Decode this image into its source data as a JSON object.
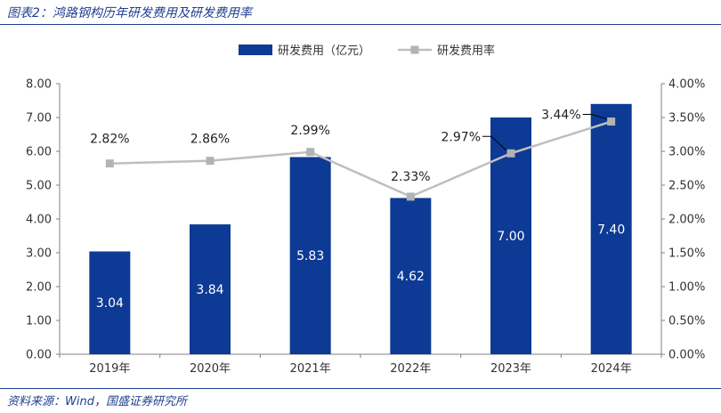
{
  "title": "图表2：鸿路钢构历年研发费用及研发费用率",
  "source": "资料来源：Wind，国盛证券研究所",
  "colors": {
    "bar": "#0d3a94",
    "line": "#bfbfbf",
    "marker": "#b3b3b3",
    "title": "#1f3f8f",
    "axis": "#595959"
  },
  "chart_data": {
    "type": "bar",
    "categories": [
      "2019年",
      "2020年",
      "2021年",
      "2022年",
      "2023年",
      "2024年"
    ],
    "series": [
      {
        "name": "研发费用（亿元）",
        "type": "bar",
        "axis": "left",
        "values": [
          3.04,
          3.84,
          5.83,
          4.62,
          7.0,
          7.4
        ],
        "data_labels": [
          "3.04",
          "3.84",
          "5.83",
          "4.62",
          "7.00",
          "7.40"
        ]
      },
      {
        "name": "研发费用率",
        "type": "line",
        "axis": "right",
        "values": [
          2.82,
          2.86,
          2.99,
          2.33,
          2.97,
          3.44
        ],
        "data_labels": [
          "2.82%",
          "2.86%",
          "2.99%",
          "2.33%",
          "2.97%",
          "3.44%"
        ]
      }
    ],
    "y_left": {
      "range": [
        0,
        8
      ],
      "ticks": [
        "0.00",
        "1.00",
        "2.00",
        "3.00",
        "4.00",
        "5.00",
        "6.00",
        "7.00",
        "8.00"
      ]
    },
    "y_right": {
      "range": [
        0,
        4
      ],
      "ticks": [
        "0.00%",
        "0.50%",
        "1.00%",
        "1.50%",
        "2.00%",
        "2.50%",
        "3.00%",
        "3.50%",
        "4.00%"
      ]
    },
    "grid": false,
    "legend_position": "top-right"
  }
}
